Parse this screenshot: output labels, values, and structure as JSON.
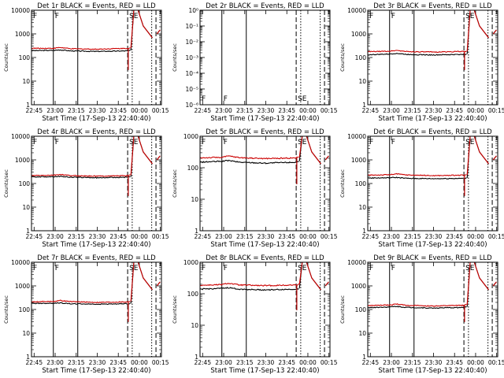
{
  "chart_data": [
    {
      "type": "line",
      "title": "Det 1r BLACK = Events, RED = LLD",
      "xlabel": "Start Time (17-Sep-13 22:40:40)",
      "ylabel": "Counts/sec",
      "yscale": "log",
      "ylim": [
        1,
        10000
      ],
      "yticks": [
        {
          "v": 1,
          "t": "1"
        },
        {
          "v": 10,
          "t": "10"
        },
        {
          "v": 100,
          "t": "100"
        },
        {
          "v": 1000,
          "t": "1000"
        },
        {
          "v": 10000,
          "t": "10000"
        }
      ],
      "xticks": [
        "22:45",
        "23:00",
        "23:15",
        "23:30",
        "23:45",
        "00:00",
        "00:15"
      ],
      "markers": [
        "F",
        "F",
        "SE"
      ],
      "series": [
        {
          "name": "Events",
          "color": "#000000",
          "profile": [
            [
              0,
              195
            ],
            [
              0.17,
              200
            ],
            [
              0.22,
              210
            ],
            [
              0.3,
              190
            ],
            [
              0.5,
              180
            ],
            [
              0.74,
              190
            ],
            [
              0.76,
              200
            ]
          ]
        },
        {
          "name": "LLD",
          "color": "#cc0000",
          "profile": [
            [
              0,
              245
            ],
            [
              0.17,
              245
            ],
            [
              0.22,
              265
            ],
            [
              0.3,
              235
            ],
            [
              0.5,
              225
            ],
            [
              0.74,
              245
            ],
            [
              0.76,
              250
            ]
          ]
        }
      ],
      "empty": false
    },
    {
      "type": "line",
      "title": "Det 2r BLACK = Events, RED = LLD",
      "xlabel": "Start Time (17-Sep-13 22:40:40)",
      "ylabel": "Counts/sec",
      "yscale": "log",
      "ylim": [
        1e-06,
        1
      ],
      "yticks": [
        {
          "v": 1e-06,
          "t": "10⁻⁶"
        },
        {
          "v": 1e-05,
          "t": "10⁻⁵"
        },
        {
          "v": 0.0001,
          "t": "10⁻⁴"
        },
        {
          "v": 0.001,
          "t": "10⁻³"
        },
        {
          "v": 0.01,
          "t": "10⁻²"
        },
        {
          "v": 0.1,
          "t": "10⁻¹"
        },
        {
          "v": 1,
          "t": "10⁰"
        }
      ],
      "xticks": [
        "22:45",
        "23:00",
        "23:15",
        "23:30",
        "23:45",
        "00:00",
        "00:15"
      ],
      "markers": [
        "F",
        "F",
        "SE"
      ],
      "series": [],
      "empty": true
    },
    {
      "type": "line",
      "title": "Det 3r BLACK = Events, RED = LLD",
      "xlabel": "Start Time (17-Sep-13 22:40:40)",
      "ylabel": "Counts/sec",
      "yscale": "log",
      "ylim": [
        1,
        10000
      ],
      "yticks": [
        {
          "v": 1,
          "t": "1"
        },
        {
          "v": 10,
          "t": "10"
        },
        {
          "v": 100,
          "t": "100"
        },
        {
          "v": 1000,
          "t": "1000"
        },
        {
          "v": 10000,
          "t": "10000"
        }
      ],
      "xticks": [
        "22:45",
        "23:00",
        "23:15",
        "23:30",
        "23:45",
        "00:00",
        "00:15"
      ],
      "markers": [
        "F",
        "F",
        "SE"
      ],
      "series": [
        {
          "name": "Events",
          "color": "#000000",
          "profile": [
            [
              0,
              130
            ],
            [
              0.17,
              140
            ],
            [
              0.22,
              150
            ],
            [
              0.3,
              135
            ],
            [
              0.5,
              128
            ],
            [
              0.74,
              135
            ],
            [
              0.76,
              140
            ]
          ]
        },
        {
          "name": "LLD",
          "color": "#cc0000",
          "profile": [
            [
              0,
              175
            ],
            [
              0.17,
              185
            ],
            [
              0.22,
              200
            ],
            [
              0.3,
              178
            ],
            [
              0.5,
              170
            ],
            [
              0.74,
              180
            ],
            [
              0.76,
              185
            ]
          ]
        }
      ],
      "empty": false
    },
    {
      "type": "line",
      "title": "Det 4r BLACK = Events, RED = LLD",
      "xlabel": "Start Time (17-Sep-13 22:40:40)",
      "ylabel": "Counts/sec",
      "yscale": "log",
      "ylim": [
        1,
        10000
      ],
      "yticks": [
        {
          "v": 1,
          "t": "1"
        },
        {
          "v": 10,
          "t": "10"
        },
        {
          "v": 100,
          "t": "100"
        },
        {
          "v": 1000,
          "t": "1000"
        },
        {
          "v": 10000,
          "t": "10000"
        }
      ],
      "xticks": [
        "22:45",
        "23:00",
        "23:15",
        "23:30",
        "23:45",
        "00:00",
        "00:15"
      ],
      "markers": [
        "F",
        "F",
        "SE"
      ],
      "series": [
        {
          "name": "Events",
          "color": "#000000",
          "profile": [
            [
              0,
              190
            ],
            [
              0.17,
              195
            ],
            [
              0.22,
              200
            ],
            [
              0.3,
              185
            ],
            [
              0.5,
              175
            ],
            [
              0.74,
              185
            ],
            [
              0.76,
              190
            ]
          ]
        },
        {
          "name": "LLD",
          "color": "#cc0000",
          "profile": [
            [
              0,
              215
            ],
            [
              0.17,
              225
            ],
            [
              0.22,
              240
            ],
            [
              0.3,
              215
            ],
            [
              0.5,
              205
            ],
            [
              0.74,
              215
            ],
            [
              0.76,
              225
            ]
          ]
        }
      ],
      "empty": false
    },
    {
      "type": "line",
      "title": "Det 5r BLACK = Events, RED = LLD",
      "xlabel": "Start Time (17-Sep-13 22:40:40)",
      "ylabel": "Counts/sec",
      "yscale": "log",
      "ylim": [
        1,
        1000
      ],
      "yticks": [
        {
          "v": 1,
          "t": "1"
        },
        {
          "v": 10,
          "t": "10"
        },
        {
          "v": 100,
          "t": "100"
        },
        {
          "v": 1000,
          "t": "1000"
        }
      ],
      "xticks": [
        "22:45",
        "23:00",
        "23:15",
        "23:30",
        "23:45",
        "00:00",
        "00:15"
      ],
      "markers": [
        "F",
        "F",
        "SE"
      ],
      "series": [
        {
          "name": "Events",
          "color": "#000000",
          "profile": [
            [
              0,
              150
            ],
            [
              0.17,
              160
            ],
            [
              0.22,
              170
            ],
            [
              0.3,
              150
            ],
            [
              0.5,
              140
            ],
            [
              0.74,
              150
            ],
            [
              0.76,
              160
            ]
          ]
        },
        {
          "name": "LLD",
          "color": "#cc0000",
          "profile": [
            [
              0,
              205
            ],
            [
              0.17,
              215
            ],
            [
              0.22,
              235
            ],
            [
              0.3,
              210
            ],
            [
              0.5,
              195
            ],
            [
              0.74,
              205
            ],
            [
              0.76,
              215
            ]
          ]
        }
      ],
      "empty": false
    },
    {
      "type": "line",
      "title": "Det 6r BLACK = Events, RED = LLD",
      "xlabel": "Start Time (17-Sep-13 22:40:40)",
      "ylabel": "Counts/sec",
      "yscale": "log",
      "ylim": [
        1,
        10000
      ],
      "yticks": [
        {
          "v": 1,
          "t": "1"
        },
        {
          "v": 10,
          "t": "10"
        },
        {
          "v": 100,
          "t": "100"
        },
        {
          "v": 1000,
          "t": "1000"
        },
        {
          "v": 10000,
          "t": "10000"
        }
      ],
      "xticks": [
        "22:45",
        "23:00",
        "23:15",
        "23:30",
        "23:45",
        "00:00",
        "00:15"
      ],
      "markers": [
        "F",
        "F",
        "SE"
      ],
      "series": [
        {
          "name": "Events",
          "color": "#000000",
          "profile": [
            [
              0,
              170
            ],
            [
              0.17,
              175
            ],
            [
              0.22,
              180
            ],
            [
              0.3,
              165
            ],
            [
              0.5,
              160
            ],
            [
              0.74,
              165
            ],
            [
              0.76,
              170
            ]
          ]
        },
        {
          "name": "LLD",
          "color": "#cc0000",
          "profile": [
            [
              0,
              225
            ],
            [
              0.17,
              235
            ],
            [
              0.22,
              255
            ],
            [
              0.3,
              230
            ],
            [
              0.5,
              215
            ],
            [
              0.74,
              225
            ],
            [
              0.76,
              235
            ]
          ]
        }
      ],
      "empty": false
    },
    {
      "type": "line",
      "title": "Det 7r BLACK = Events, RED = LLD",
      "xlabel": "Start Time (17-Sep-13 22:40:40)",
      "ylabel": "Counts/sec",
      "yscale": "log",
      "ylim": [
        1,
        10000
      ],
      "yticks": [
        {
          "v": 1,
          "t": "1"
        },
        {
          "v": 10,
          "t": "10"
        },
        {
          "v": 100,
          "t": "100"
        },
        {
          "v": 1000,
          "t": "1000"
        },
        {
          "v": 10000,
          "t": "10000"
        }
      ],
      "xticks": [
        "22:45",
        "23:00",
        "23:15",
        "23:30",
        "23:45",
        "00:00",
        "00:15"
      ],
      "markers": [
        "F",
        "F",
        "SE"
      ],
      "series": [
        {
          "name": "Events",
          "color": "#000000",
          "profile": [
            [
              0,
              180
            ],
            [
              0.17,
              185
            ],
            [
              0.22,
              190
            ],
            [
              0.3,
              175
            ],
            [
              0.5,
              168
            ],
            [
              0.74,
              175
            ],
            [
              0.76,
              180
            ]
          ]
        },
        {
          "name": "LLD",
          "color": "#cc0000",
          "profile": [
            [
              0,
              210
            ],
            [
              0.17,
              220
            ],
            [
              0.22,
              240
            ],
            [
              0.3,
              215
            ],
            [
              0.5,
              200
            ],
            [
              0.74,
              210
            ],
            [
              0.76,
              220
            ]
          ]
        }
      ],
      "empty": false
    },
    {
      "type": "line",
      "title": "Det 8r BLACK = Events, RED = LLD",
      "xlabel": "Start Time (17-Sep-13 22:40:40)",
      "ylabel": "Counts/sec",
      "yscale": "log",
      "ylim": [
        1,
        1000
      ],
      "yticks": [
        {
          "v": 1,
          "t": "1"
        },
        {
          "v": 10,
          "t": "10"
        },
        {
          "v": 100,
          "t": "100"
        },
        {
          "v": 1000,
          "t": "1000"
        }
      ],
      "xticks": [
        "22:45",
        "23:00",
        "23:15",
        "23:30",
        "23:45",
        "00:00",
        "00:15"
      ],
      "markers": [
        "F",
        "F",
        "SE"
      ],
      "series": [
        {
          "name": "Events",
          "color": "#000000",
          "profile": [
            [
              0,
              140
            ],
            [
              0.17,
              148
            ],
            [
              0.22,
              155
            ],
            [
              0.3,
              140
            ],
            [
              0.5,
              132
            ],
            [
              0.74,
              140
            ],
            [
              0.76,
              148
            ]
          ]
        },
        {
          "name": "LLD",
          "color": "#cc0000",
          "profile": [
            [
              0,
              185
            ],
            [
              0.17,
              195
            ],
            [
              0.22,
              215
            ],
            [
              0.3,
              190
            ],
            [
              0.5,
              180
            ],
            [
              0.74,
              190
            ],
            [
              0.76,
              200
            ]
          ]
        }
      ],
      "empty": false
    },
    {
      "type": "line",
      "title": "Det 9r BLACK = Events, RED = LLD",
      "xlabel": "Start Time (17-Sep-13 22:40:40)",
      "ylabel": "Counts/sec",
      "yscale": "log",
      "ylim": [
        1,
        10000
      ],
      "yticks": [
        {
          "v": 1,
          "t": "1"
        },
        {
          "v": 10,
          "t": "10"
        },
        {
          "v": 100,
          "t": "100"
        },
        {
          "v": 1000,
          "t": "1000"
        },
        {
          "v": 10000,
          "t": "10000"
        }
      ],
      "xticks": [
        "22:45",
        "23:00",
        "23:15",
        "23:30",
        "23:45",
        "00:00",
        "00:15"
      ],
      "markers": [
        "F",
        "F",
        "SE"
      ],
      "series": [
        {
          "name": "Events",
          "color": "#000000",
          "profile": [
            [
              0,
              120
            ],
            [
              0.17,
              128
            ],
            [
              0.22,
              135
            ],
            [
              0.3,
              122
            ],
            [
              0.5,
              115
            ],
            [
              0.74,
              122
            ],
            [
              0.76,
              130
            ]
          ]
        },
        {
          "name": "LLD",
          "color": "#cc0000",
          "profile": [
            [
              0,
              145
            ],
            [
              0.17,
              155
            ],
            [
              0.22,
              170
            ],
            [
              0.3,
              150
            ],
            [
              0.5,
              140
            ],
            [
              0.74,
              150
            ],
            [
              0.76,
              160
            ]
          ]
        }
      ],
      "empty": false
    }
  ]
}
